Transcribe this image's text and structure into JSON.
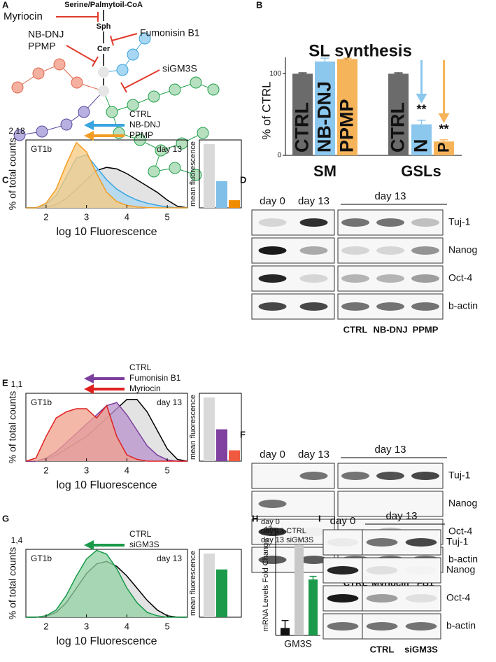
{
  "panel_a": {
    "label": "A",
    "substrate": "Serine/Palmytoil-CoA",
    "sph": "Sph",
    "cer": "Cer",
    "inhibitors": [
      {
        "name": "Myriocin",
        "color": "#e03a2a"
      },
      {
        "name": "Fumonisin B1",
        "color": "#7b3f9e"
      },
      {
        "name": "NB-DNJ",
        "color": "#3aa4e0"
      },
      {
        "name": "PPMP",
        "color": "#f39c34"
      },
      {
        "name": "siGM3S",
        "color": "#22a04b"
      }
    ]
  },
  "panel_b": {
    "label": "B",
    "type": "bar",
    "title": "SL synthesis",
    "ylabel": "% of CTRL",
    "ylim": [
      0,
      120
    ],
    "yticks": [
      0,
      100
    ],
    "groups": [
      {
        "name": "SM",
        "bars": [
          {
            "label": "CTRL",
            "value": 100,
            "error": 1,
            "color": "#6b6b6b"
          },
          {
            "label": "NB-DNJ",
            "value": 115,
            "error": 4,
            "color": "#8cc8ee"
          },
          {
            "label": "PPMP",
            "value": 118,
            "error": 1,
            "color": "#f6b45a"
          }
        ]
      },
      {
        "name": "GSLs",
        "bars": [
          {
            "label": "CTRL",
            "value": 100,
            "error": 1,
            "color": "#6b6b6b"
          },
          {
            "label": "N",
            "value": 38,
            "error": 5,
            "color": "#8cc8ee",
            "annotation": "**"
          },
          {
            "label": "P",
            "value": 17,
            "error": 2,
            "color": "#f6b45a",
            "annotation": "**"
          }
        ]
      }
    ]
  },
  "panel_c": {
    "label": "C",
    "histogram": {
      "type": "area",
      "ylabel": "% of total counts",
      "xlabel": "log 10 Fluorescence",
      "annotations": [
        "GT1b",
        "day 13"
      ],
      "xlim": [
        1.5,
        5.5
      ],
      "xticks": [
        2,
        3,
        4,
        5
      ],
      "ylim": [
        0,
        2.18
      ],
      "yticks": [
        {
          "value": 2.18,
          "label": "2,18"
        }
      ],
      "x": [
        1.5,
        1.75,
        2,
        2.25,
        2.5,
        2.75,
        3,
        3.25,
        3.5,
        3.75,
        4,
        4.25,
        4.5,
        4.75,
        5,
        5.25,
        5.5
      ],
      "series": [
        {
          "name": "CTRL",
          "color": "#000000",
          "fill": "#d9d9d9",
          "values": [
            0,
            0,
            0.02,
            0.1,
            0.3,
            0.6,
            0.9,
            1.2,
            1.3,
            1.25,
            1.1,
            0.9,
            0.7,
            0.5,
            0.25,
            0.05,
            0
          ]
        },
        {
          "name": "NB-DNJ",
          "color": "#3aa4e0",
          "fill": "#a8d7f3",
          "values": [
            0,
            0,
            0.1,
            0.4,
            1.0,
            1.6,
            1.7,
            1.3,
            0.9,
            0.6,
            0.4,
            0.25,
            0.15,
            0.08,
            0.03,
            0,
            0
          ]
        },
        {
          "name": "PPMP",
          "color": "#f39c24",
          "fill": "#f8c97e",
          "values": [
            0,
            0,
            0.15,
            0.6,
            1.4,
            2.1,
            1.8,
            1.1,
            0.5,
            0.2,
            0.08,
            0.03,
            0.01,
            0,
            0,
            0,
            0
          ]
        }
      ]
    },
    "mean_fluorescence": {
      "type": "bar",
      "label": "mean fluorescence",
      "ylim": [
        0,
        1
      ],
      "values": [
        1,
        0.42,
        0.12
      ],
      "colors": [
        "#d9d9d9",
        "#7fbfe8",
        "#f08c00"
      ]
    }
  },
  "panel_d": {
    "label": "D",
    "type": "blot",
    "lanes_left": [
      "day 0",
      "day 13"
    ],
    "header_right": "day 13",
    "conditions": [
      {
        "name": "CTRL",
        "color": "#000000"
      },
      {
        "name": "NB-DNJ",
        "color": "#3aa4e0"
      },
      {
        "name": "PPMP",
        "color": "#f39c24"
      }
    ],
    "rows": [
      {
        "name": "Tuj-1",
        "intensity": [
          0.15,
          0.9,
          0.6,
          0.6,
          0.25
        ]
      },
      {
        "name": "Nanog",
        "intensity": [
          1,
          0.35,
          0.15,
          0.15,
          0.45
        ]
      },
      {
        "name": "Oct-4",
        "intensity": [
          0.95,
          0.15,
          0.3,
          0.3,
          0.4
        ]
      },
      {
        "name": "b-actin",
        "intensity": [
          0.8,
          0.8,
          0.6,
          0.6,
          0.6
        ]
      }
    ]
  },
  "panel_e": {
    "label": "E",
    "histogram": {
      "type": "area",
      "ylabel": "% of total counts",
      "xlabel": "log 10 Fluorescence",
      "annotations": [
        "GT1b",
        "day 13"
      ],
      "xlim": [
        1.5,
        5.5
      ],
      "xticks": [
        2,
        3,
        4,
        5
      ],
      "ylim": [
        0,
        1.1
      ],
      "yticks": [
        {
          "value": 1.1,
          "label": "1,1"
        }
      ],
      "x": [
        1.5,
        1.75,
        2,
        2.25,
        2.5,
        2.75,
        3,
        3.25,
        3.5,
        3.75,
        4,
        4.25,
        4.5,
        4.75,
        5,
        5.25,
        5.5
      ],
      "series": [
        {
          "name": "CTRL",
          "color": "#000000",
          "fill": "#d9d9d9",
          "values": [
            0,
            0,
            0.03,
            0.1,
            0.2,
            0.3,
            0.4,
            0.55,
            0.7,
            0.85,
            1.0,
            1.0,
            0.8,
            0.5,
            0.2,
            0.03,
            0
          ]
        },
        {
          "name": "Fumonisin B1",
          "color": "#7b3f9e",
          "fill": "#b892cc",
          "values": [
            0,
            0,
            0.05,
            0.15,
            0.3,
            0.45,
            0.6,
            0.75,
            0.9,
            0.95,
            0.75,
            0.5,
            0.25,
            0.1,
            0.02,
            0,
            0
          ]
        },
        {
          "name": "Myriocin",
          "color": "#e02020",
          "fill": "#f0a08c",
          "values": [
            0,
            0.05,
            0.4,
            0.7,
            0.8,
            0.85,
            0.85,
            0.7,
            0.9,
            0.4,
            0.1,
            0.03,
            0,
            0,
            0,
            0,
            0
          ]
        }
      ]
    },
    "mean_fluorescence": {
      "type": "bar",
      "label": "mean fluorescence",
      "ylim": [
        0,
        1
      ],
      "values": [
        1,
        0.5,
        0.17
      ],
      "colors": [
        "#d9d9d9",
        "#8040a0",
        "#f05a40"
      ]
    }
  },
  "panel_f": {
    "label": "F",
    "type": "blot",
    "lanes_left": [
      "day 0",
      "day 13"
    ],
    "header_right": "day 13",
    "conditions": [
      {
        "name": "CTRL",
        "color": "#000000"
      },
      {
        "name": "Myriocin",
        "color": "#e02020"
      },
      {
        "name": "FB1",
        "color": "#7b3f9e"
      }
    ],
    "rows": [
      {
        "name": "Tuj-1",
        "intensity": [
          0,
          0.6,
          0.6,
          0.75,
          0.8
        ]
      },
      {
        "name": "Nanog",
        "intensity": [
          0.6,
          0,
          0,
          0,
          0
        ]
      },
      {
        "name": "Oct-4",
        "intensity": [
          0.9,
          0.03,
          0.03,
          0.25,
          0
        ]
      },
      {
        "name": "b-actin",
        "intensity": [
          0.7,
          0.7,
          0.6,
          0.6,
          0.6
        ]
      }
    ]
  },
  "panel_g": {
    "label": "G",
    "histogram": {
      "type": "area",
      "ylabel": "% of total counts",
      "xlabel": "log 10 Fluorescence",
      "annotations": [
        "GT1b",
        "day 13"
      ],
      "xlim": [
        1.5,
        5.5
      ],
      "xticks": [
        2,
        3,
        4,
        5
      ],
      "ylim": [
        0,
        1.4
      ],
      "yticks": [
        {
          "value": 1.4,
          "label": "1,4"
        }
      ],
      "x": [
        1.5,
        1.75,
        2,
        2.25,
        2.5,
        2.75,
        3,
        3.25,
        3.5,
        3.75,
        4,
        4.25,
        4.5,
        4.75,
        5,
        5.25,
        5.5
      ],
      "series": [
        {
          "name": "CTRL",
          "color": "#000000",
          "fill": "#d9d9d9",
          "values": [
            0,
            0,
            0.02,
            0.1,
            0.3,
            0.6,
            0.9,
            1.1,
            1.15,
            1.05,
            0.85,
            0.6,
            0.35,
            0.15,
            0.03,
            0,
            0
          ]
        },
        {
          "name": "siGM3S",
          "color": "#1a9a4a",
          "fill": "#92d1a3",
          "values": [
            0,
            0,
            0.03,
            0.15,
            0.45,
            0.85,
            1.2,
            1.38,
            1.3,
            1.0,
            0.6,
            0.3,
            0.1,
            0.03,
            0,
            0,
            0
          ]
        }
      ]
    },
    "mean_fluorescence": {
      "type": "bar",
      "label": "mean fluorescence",
      "ylim": [
        0,
        1
      ],
      "values": [
        1,
        0.75
      ],
      "colors": [
        "#d9d9d9",
        "#1a9a4a"
      ]
    }
  },
  "panel_h": {
    "label": "H",
    "type": "bar",
    "ylabel": "mRNA Levels Fold Change",
    "xlabel": "GM3S",
    "xlabel_color": "#1a9a4a",
    "ylim": [
      0,
      17
    ],
    "yticks": [
      17
    ],
    "series": [
      {
        "name": "day 0",
        "color": "#111111",
        "value": 1.2,
        "error": 1.2
      },
      {
        "name": "day 13 CTRL",
        "color": "#c8c8c8",
        "value": 14.5,
        "error": 1.0
      },
      {
        "name": "day 13 siGM3S",
        "color": "#1a9a4a",
        "value": 9.0,
        "error": 0.5
      }
    ]
  },
  "panel_i": {
    "label": "I",
    "type": "blot",
    "lanes_left": [
      "day 0"
    ],
    "header_right": "day 13",
    "conditions": [
      {
        "name": "CTRL",
        "color": "#000000"
      },
      {
        "name": "siGM3S",
        "color": "#1a9a4a"
      }
    ],
    "rows": [
      {
        "name": "Tuj-1",
        "intensity": [
          0.05,
          0.6,
          0.8
        ]
      },
      {
        "name": "Nanog",
        "intensity": [
          0.95,
          0.1,
          0.02
        ]
      },
      {
        "name": "Oct-4",
        "intensity": [
          1,
          0.4,
          0.1
        ]
      },
      {
        "name": "b-actin",
        "intensity": [
          0.6,
          0.6,
          0.6
        ]
      }
    ]
  }
}
